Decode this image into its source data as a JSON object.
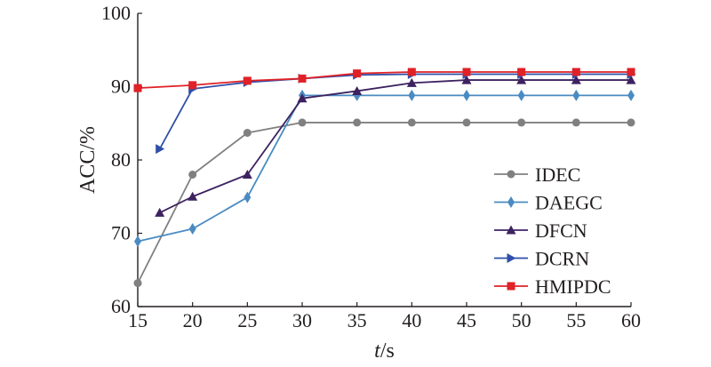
{
  "chart_data": {
    "type": "line",
    "xlabel_italic": "t",
    "xlabel_rest": "/s",
    "ylabel": "ACC/%",
    "xlim": [
      15,
      60
    ],
    "ylim": [
      60,
      100
    ],
    "xticks": [
      15,
      20,
      25,
      30,
      35,
      40,
      45,
      50,
      55,
      60
    ],
    "yticks": [
      60,
      70,
      80,
      90,
      100
    ],
    "grid": false,
    "legend_position": "bottom-right",
    "series": [
      {
        "name": "IDEC",
        "color": "#808080",
        "marker": "circle",
        "x": [
          15,
          20,
          25,
          30,
          35,
          40,
          45,
          50,
          55,
          60
        ],
        "y": [
          63.2,
          78.0,
          83.7,
          85.1,
          85.1,
          85.1,
          85.1,
          85.1,
          85.1,
          85.1
        ]
      },
      {
        "name": "DAEGC",
        "color": "#4a8bc2",
        "marker": "diamond",
        "x": [
          15,
          20,
          25,
          30,
          35,
          40,
          45,
          50,
          55,
          60
        ],
        "y": [
          68.9,
          70.6,
          74.9,
          88.8,
          88.8,
          88.8,
          88.8,
          88.8,
          88.8,
          88.8
        ]
      },
      {
        "name": "DFCN",
        "color": "#3d2260",
        "marker": "triangle-up",
        "x": [
          17,
          20,
          25,
          30,
          35,
          40,
          45,
          50,
          55,
          60
        ],
        "y": [
          72.8,
          75.0,
          78.0,
          88.4,
          89.4,
          90.5,
          90.9,
          90.9,
          90.9,
          90.9
        ]
      },
      {
        "name": "DCRN",
        "color": "#2f4fa8",
        "marker": "triangle-right",
        "x": [
          17,
          20,
          25,
          30,
          35,
          40,
          45,
          50,
          55,
          60
        ],
        "y": [
          81.5,
          89.7,
          90.6,
          91.1,
          91.6,
          91.7,
          91.7,
          91.7,
          91.7,
          91.7
        ]
      },
      {
        "name": "HMIPDC",
        "color": "#e02127",
        "marker": "square",
        "x": [
          15,
          20,
          25,
          30,
          35,
          40,
          45,
          50,
          55,
          60
        ],
        "y": [
          89.8,
          90.2,
          90.8,
          91.1,
          91.8,
          92.0,
          92.0,
          92.0,
          92.0,
          92.0
        ]
      }
    ]
  }
}
